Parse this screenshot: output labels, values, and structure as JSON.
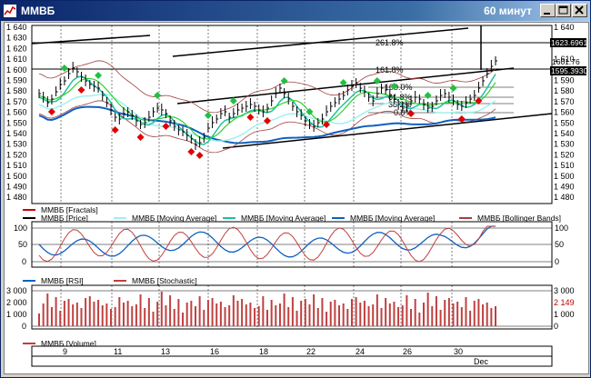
{
  "window": {
    "title": "ММВБ",
    "timeframe": "60 минут"
  },
  "price_panel": {
    "left_ticks": [
      "1 640",
      "1 630",
      "1 620",
      "1 610",
      "1 600",
      "1 590",
      "1 580",
      "1 570",
      "1 560",
      "1 550",
      "1 540",
      "1 530",
      "1 520",
      "1 510",
      "1 500",
      "1 490",
      "1 480"
    ],
    "right_ticks": [
      "1 640",
      "1 630",
      "1 620",
      "1 610",
      "1 600",
      "1 590",
      "1 580",
      "1 570",
      "1 560",
      "1 550",
      "1 540",
      "1 530",
      "1 520",
      "1 510",
      "1 500",
      "1 490",
      "1 480"
    ],
    "fib_labels": [
      "261.8%",
      "161.8%",
      "100.0%",
      "61.8%",
      "38.2%",
      "0.0%"
    ],
    "price_badge_1": "1623.69617",
    "price_badge_2": "1601.76",
    "price_badge_3": "1595.39304"
  },
  "legend_main": [
    {
      "label": "ММВБ [Fractals]",
      "color": "#cc0000"
    },
    {
      "label": "ММВБ [Price]",
      "color": "#000000"
    },
    {
      "label": "ММВБ [Moving Average]",
      "color": "#a0f0f0"
    },
    {
      "label": "ММВБ [Moving Average]",
      "color": "#20c0a0"
    },
    {
      "label": "ММВБ [Moving Average]",
      "color": "#1060c0"
    },
    {
      "label": "ММВБ [Bollinger Bands]",
      "color": "#a04040"
    }
  ],
  "osc_panel": {
    "left_ticks": [
      "100",
      "50",
      "0"
    ],
    "right_ticks": [
      "100",
      "50",
      "0"
    ]
  },
  "legend_osc": [
    {
      "label": "ММВБ [RSI]",
      "color": "#1060c0"
    },
    {
      "label": "ММВБ [Stochastic]",
      "color": "#c04040"
    }
  ],
  "vol_panel": {
    "left_ticks": [
      "3 000",
      "2 000",
      "1 000",
      "0"
    ],
    "right_ticks": [
      "3 000",
      "1 000",
      "0"
    ],
    "value_badge": "2 149"
  },
  "legend_vol": [
    {
      "label": "ММВБ [Volume]",
      "color": "#c04040"
    }
  ],
  "date_axis": {
    "labels": [
      "9",
      "11",
      "13",
      "16",
      "18",
      "22",
      "24",
      "26",
      "30"
    ],
    "month": "Dec"
  },
  "colors": {
    "title_bar": "#0a246a",
    "chart_bg": "#ffffff",
    "fractal": "#e00000",
    "fractal_up": "#20c040"
  }
}
